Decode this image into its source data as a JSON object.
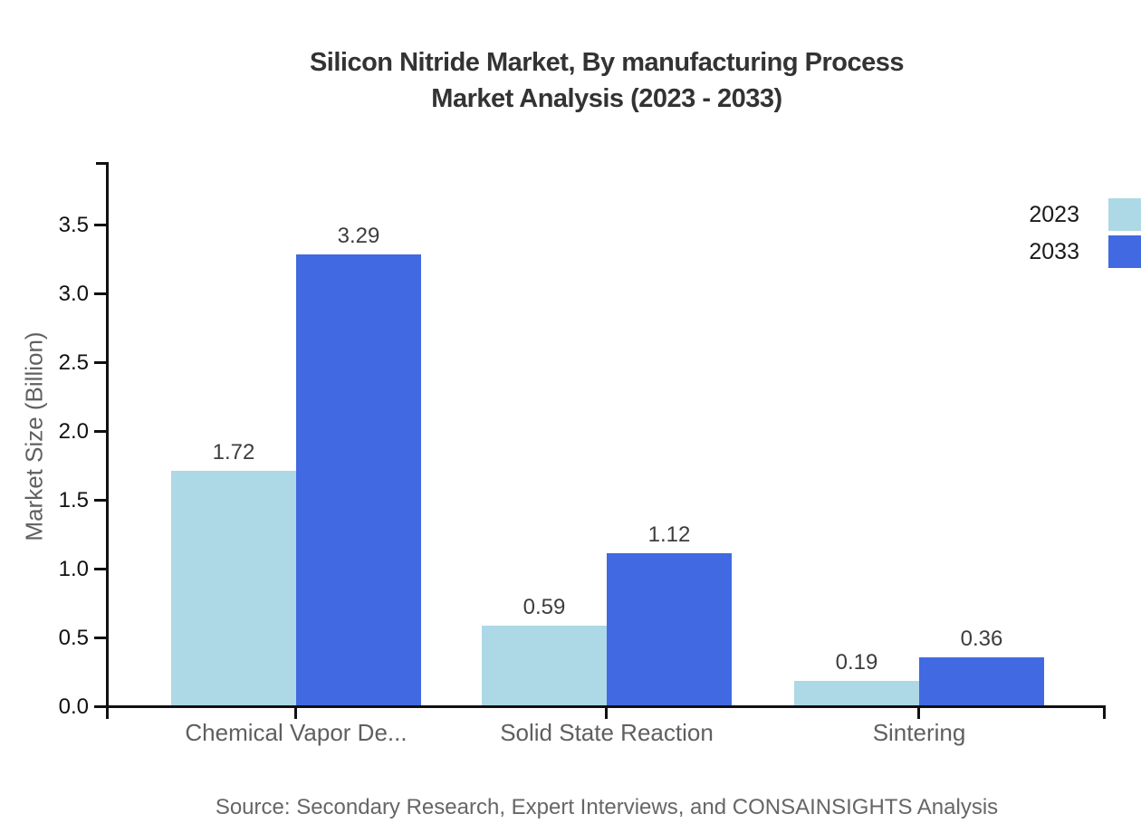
{
  "title": {
    "line1": "Silicon Nitride Market, By manufacturing Process",
    "line2": "Market Analysis (2023 - 2033)"
  },
  "source": "Source: Secondary Research, Expert Interviews, and CONSAINSIGHTS Analysis",
  "legend": [
    {
      "label": "2023",
      "color": "#ADD8E6"
    },
    {
      "label": "2033",
      "color": "#4169E1"
    }
  ],
  "colors": {
    "series_2023": "#ADD8E6",
    "series_2033": "#4169E1",
    "title_text": "#333333",
    "axis_line": "#111111",
    "tick_label": "#111111",
    "value_label": "#3d3d3d",
    "category_label": "#5f5f5f",
    "source_text": "#666666",
    "background": "#ffffff"
  },
  "chart_data": {
    "type": "bar",
    "title": "Silicon Nitride Market, By manufacturing Process Market Analysis (2023 - 2033)",
    "categories": [
      "Chemical Vapor De...",
      "Solid State Reaction",
      "Sintering"
    ],
    "series": [
      {
        "name": "2023",
        "color": "#ADD8E6",
        "values": [
          1.72,
          0.59,
          0.19
        ]
      },
      {
        "name": "2033",
        "color": "#4169E1",
        "values": [
          3.29,
          1.12,
          0.36
        ]
      }
    ],
    "xlabel": "",
    "ylabel": "Market Size (Billion)",
    "ylim": [
      0,
      3.95
    ],
    "yticks": [
      0.0,
      0.5,
      1.0,
      1.5,
      2.0,
      2.5,
      3.0,
      3.5
    ],
    "grid": false,
    "legend_position": "top-right",
    "value_labels_shown": true
  }
}
